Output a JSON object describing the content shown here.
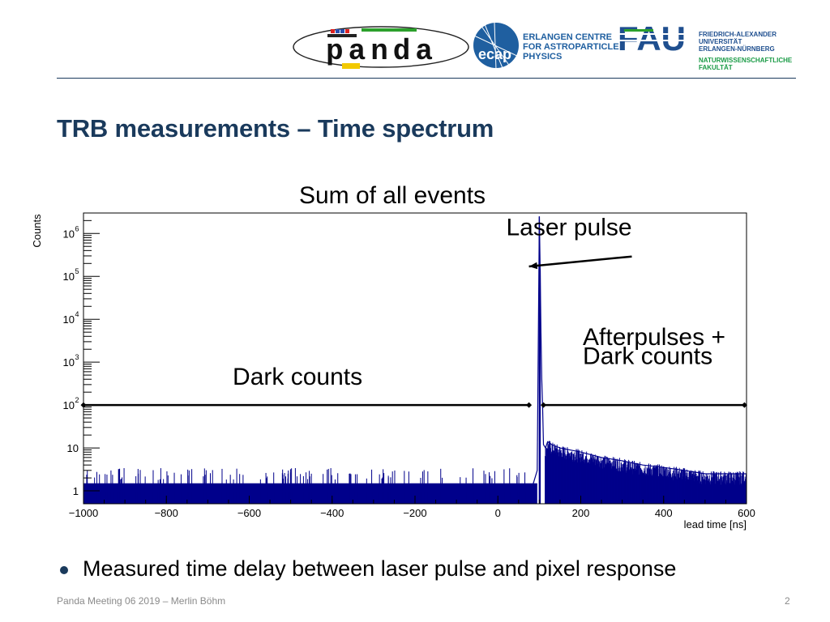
{
  "header": {
    "panda_logo_text": "panda",
    "ecap_logo_text": "ecap",
    "ecap_name": [
      "ERLANGEN CENTRE",
      "FOR ASTROPARTICLE",
      "PHYSICS"
    ],
    "fau_logo_text": "FAU",
    "fau_name": [
      "FRIEDRICH-ALEXANDER",
      "UNIVERSITÄT",
      "ERLANGEN-NÜRNBERG"
    ],
    "fau_faculty": [
      "NATURWISSENSCHAFTLICHE",
      "FAKULTÄT"
    ]
  },
  "slide": {
    "title": "TRB measurements – Time spectrum",
    "bullet": "Measured time delay between laser pulse and pixel response",
    "footer": "Panda Meeting 06 2019 – Merlin Böhm",
    "page_number": "2"
  },
  "chart_data": {
    "type": "bar",
    "title": "Sum of all events",
    "xlabel": "lead time  [ns]",
    "ylabel": "Counts",
    "log_y": true,
    "xlim": [
      -1000,
      600
    ],
    "ylim": [
      0.5,
      3000000
    ],
    "x_ticks": [
      -1000,
      -800,
      -600,
      -400,
      -200,
      0,
      200,
      400,
      600
    ],
    "x_tick_labels": [
      "−1000",
      "−800",
      "−600",
      "−400",
      "−200",
      "0",
      "200",
      "400",
      "600"
    ],
    "y_ticks": [
      {
        "value": 1,
        "base": "1",
        "exp": ""
      },
      {
        "value": 10,
        "base": "10",
        "exp": ""
      },
      {
        "value": 100,
        "base": "10",
        "exp": "2"
      },
      {
        "value": 1000,
        "base": "10",
        "exp": "3"
      },
      {
        "value": 10000,
        "base": "10",
        "exp": "4"
      },
      {
        "value": 100000,
        "base": "10",
        "exp": "5"
      },
      {
        "value": 1000000,
        "base": "10",
        "exp": "6"
      }
    ],
    "grid": false,
    "color": "#00008b",
    "series": [
      {
        "x": [
          -1000,
          -200,
          20,
          80,
          95,
          100,
          102,
          104,
          106,
          108,
          110,
          115,
          120,
          125,
          130,
          150,
          200,
          250,
          300,
          350,
          400,
          450,
          500,
          550,
          600
        ],
        "y": [
          1,
          1,
          1,
          1,
          3,
          2500000,
          150000,
          5000,
          400,
          80,
          12,
          10,
          14,
          13,
          12,
          10,
          8,
          6,
          5,
          4,
          3.5,
          3,
          2.5,
          2.5,
          2.5
        ]
      }
    ],
    "annotations": [
      {
        "text": "Laser pulse",
        "x": 20,
        "y": 900000,
        "arrow_to": [
          75,
          170000
        ]
      },
      {
        "text": "Afterpulses +",
        "x": 205,
        "y": 2500
      },
      {
        "text": "Dark counts",
        "x": 205,
        "y": 900
      },
      {
        "text": "Dark counts",
        "x": -640,
        "y": 300
      }
    ],
    "ranges": [
      {
        "from": -1000,
        "to": 75,
        "y": 100
      },
      {
        "from": 110,
        "to": 595,
        "y": 100
      }
    ]
  }
}
